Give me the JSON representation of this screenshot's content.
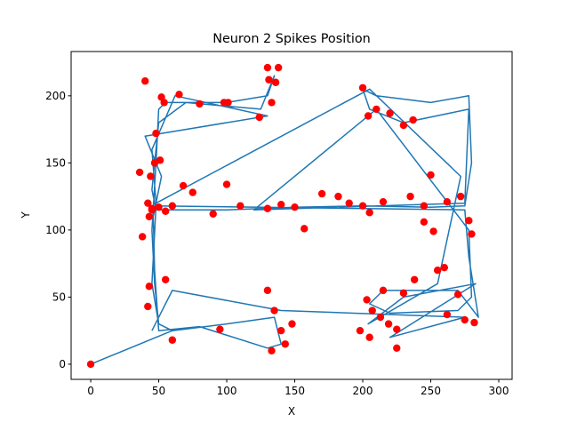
{
  "chart_data": {
    "type": "line",
    "title": "Neuron 2 Spikes Position",
    "x_label": "X",
    "y_label": "Y",
    "xlim": [
      -14.4,
      309.8
    ],
    "ylim": [
      -11.3,
      233
    ],
    "xticks": [
      0,
      50,
      100,
      150,
      200,
      250,
      300
    ],
    "yticks": [
      0,
      50,
      100,
      150,
      200
    ],
    "series": [
      {
        "type": "line",
        "color": "#1f77b4",
        "x": [
          0,
          60,
          50,
          47,
          45,
          48,
          50,
          55,
          100,
          130,
          135,
          125,
          70,
          50,
          45,
          48,
          100,
          150,
          200,
          250,
          275,
          280,
          278,
          250,
          210,
          200,
          205,
          230,
          278,
          275,
          120,
          210,
          278,
          280,
          270,
          220,
          205,
          215,
          270,
          285,
          278,
          275,
          48,
          45,
          50,
          60,
          100,
          135,
          140,
          130,
          80,
          50,
          47,
          46,
          52,
          40,
          130,
          62,
          45,
          48,
          205,
          272,
          255,
          204,
          230,
          283,
          220,
          275,
          140,
          60,
          45
        ],
        "y": [
          0,
          25,
          30,
          60,
          100,
          150,
          190,
          195,
          195,
          200,
          215,
          190,
          195,
          180,
          130,
          115,
          115,
          117,
          118,
          117,
          118,
          150,
          200,
          195,
          200,
          205,
          190,
          180,
          190,
          120,
          115,
          190,
          100,
          50,
          40,
          38,
          45,
          55,
          55,
          35,
          80,
          115,
          118,
          60,
          30,
          25,
          30,
          35,
          15,
          12,
          28,
          25,
          70,
          110,
          140,
          170,
          185,
          200,
          160,
          120,
          205,
          140,
          60,
          30,
          50,
          60,
          20,
          35,
          40,
          55,
          25
        ]
      },
      {
        "type": "scatter",
        "color": "#ff0000",
        "x": [
          0,
          40,
          52,
          54,
          65,
          80,
          98,
          101,
          124,
          130,
          131,
          136,
          138,
          133,
          48,
          47,
          44,
          42,
          45,
          51,
          36,
          43,
          45,
          50,
          55,
          60,
          68,
          75,
          90,
          100,
          110,
          130,
          140,
          150,
          157,
          170,
          182,
          190,
          200,
          205,
          215,
          235,
          245,
          252,
          262,
          272,
          278,
          280,
          43,
          42,
          55,
          38,
          60,
          95,
          130,
          135,
          140,
          143,
          148,
          133,
          200,
          204,
          210,
          220,
          230,
          237,
          250,
          260,
          270,
          275,
          282,
          203,
          207,
          213,
          219,
          225,
          198,
          205,
          215,
          230,
          238,
          262,
          225,
          255,
          245
        ],
        "y": [
          0,
          211,
          199,
          195,
          201,
          194,
          195,
          195,
          184,
          221,
          212,
          210,
          221,
          195,
          172,
          150,
          140,
          120,
          116,
          152,
          143,
          110,
          115,
          117,
          114,
          118,
          133,
          128,
          112,
          134,
          118,
          116,
          119,
          117,
          101,
          127,
          125,
          120,
          118,
          113,
          121,
          125,
          118,
          99,
          121,
          125,
          107,
          97,
          58,
          43,
          63,
          95,
          18,
          26,
          55,
          40,
          25,
          15,
          30,
          10,
          206,
          185,
          190,
          187,
          178,
          182,
          141,
          72,
          52,
          33,
          31,
          48,
          40,
          35,
          30,
          26,
          25,
          20,
          55,
          53,
          63,
          37,
          12,
          70,
          106
        ]
      }
    ]
  }
}
